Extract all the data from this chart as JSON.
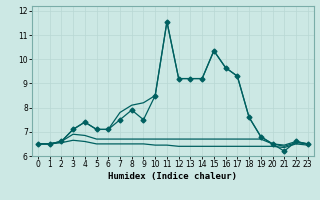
{
  "xlabel": "Humidex (Indice chaleur)",
  "ylabel": "",
  "bg_color": "#cce8e4",
  "line_color": "#006060",
  "grid_color": "#b8d8d4",
  "xlim": [
    -0.5,
    23.5
  ],
  "ylim": [
    6.0,
    12.2
  ],
  "yticks": [
    6,
    7,
    8,
    9,
    10,
    11,
    12
  ],
  "xticks": [
    0,
    1,
    2,
    3,
    4,
    5,
    6,
    7,
    8,
    9,
    10,
    11,
    12,
    13,
    14,
    15,
    16,
    17,
    18,
    19,
    20,
    21,
    22,
    23
  ],
  "series": {
    "main": {
      "x": [
        0,
        1,
        2,
        3,
        4,
        5,
        6,
        7,
        8,
        9,
        10,
        11,
        12,
        13,
        14,
        15,
        16,
        17,
        18,
        19,
        20,
        21,
        22,
        23
      ],
      "y": [
        6.5,
        6.5,
        6.6,
        7.1,
        7.4,
        7.1,
        7.1,
        7.5,
        7.9,
        7.5,
        8.5,
        11.55,
        9.2,
        9.2,
        9.2,
        10.35,
        9.65,
        9.3,
        7.6,
        6.8,
        6.5,
        6.2,
        6.6,
        6.5
      ]
    },
    "upper": {
      "x": [
        0,
        1,
        2,
        3,
        4,
        5,
        6,
        7,
        8,
        9,
        10,
        11,
        12,
        13,
        14,
        15,
        16,
        17,
        18,
        19,
        20,
        21,
        22,
        23
      ],
      "y": [
        6.5,
        6.5,
        6.6,
        7.1,
        7.4,
        7.1,
        7.1,
        7.8,
        8.1,
        8.2,
        8.5,
        11.55,
        9.2,
        9.2,
        9.2,
        10.35,
        9.65,
        9.3,
        7.6,
        6.8,
        6.5,
        6.45,
        6.6,
        6.5
      ]
    },
    "lower1": {
      "x": [
        0,
        1,
        2,
        3,
        4,
        5,
        6,
        7,
        8,
        9,
        10,
        11,
        12,
        13,
        14,
        15,
        16,
        17,
        18,
        19,
        20,
        21,
        22,
        23
      ],
      "y": [
        6.5,
        6.5,
        6.6,
        6.9,
        6.85,
        6.7,
        6.7,
        6.7,
        6.7,
        6.7,
        6.7,
        6.7,
        6.7,
        6.7,
        6.7,
        6.7,
        6.7,
        6.7,
        6.7,
        6.7,
        6.5,
        6.4,
        6.55,
        6.5
      ]
    },
    "lower2": {
      "x": [
        0,
        1,
        2,
        3,
        4,
        5,
        6,
        7,
        8,
        9,
        10,
        11,
        12,
        13,
        14,
        15,
        16,
        17,
        18,
        19,
        20,
        21,
        22,
        23
      ],
      "y": [
        6.5,
        6.5,
        6.55,
        6.65,
        6.6,
        6.5,
        6.5,
        6.5,
        6.5,
        6.5,
        6.45,
        6.45,
        6.4,
        6.4,
        6.4,
        6.4,
        6.4,
        6.4,
        6.4,
        6.4,
        6.4,
        6.35,
        6.5,
        6.45
      ]
    }
  },
  "marker": "D",
  "markersize": 2.5,
  "linewidth": 0.9,
  "tick_fontsize": 5.5,
  "xlabel_fontsize": 6.5
}
